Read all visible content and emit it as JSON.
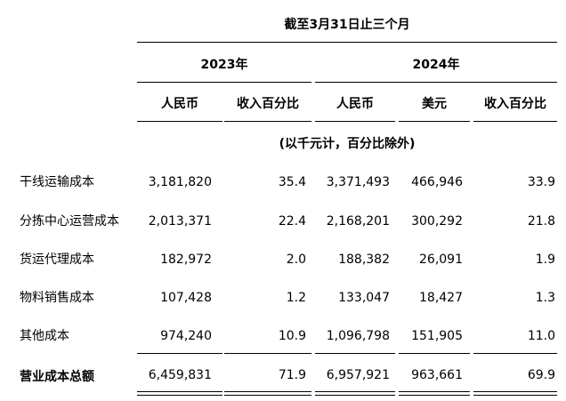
{
  "header": {
    "period": "截至3月31日止三个月",
    "year_2023": "2023年",
    "year_2024": "2024年",
    "col_rmb_2023": "人民币",
    "col_pct_2023": "收入百分比",
    "col_rmb_2024": "人民币",
    "col_usd_2024": "美元",
    "col_pct_2024": "收入百分比",
    "unit_note": "(以千元计，百分比除外)"
  },
  "rows": [
    {
      "label": "干线运输成本",
      "rmb_2023": "3,181,820",
      "pct_2023": "35.4",
      "rmb_2024": "3,371,493",
      "usd_2024": "466,946",
      "pct_2024": "33.9"
    },
    {
      "label": "分拣中心运营成本",
      "rmb_2023": "2,013,371",
      "pct_2023": "22.4",
      "rmb_2024": "2,168,201",
      "usd_2024": "300,292",
      "pct_2024": "21.8"
    },
    {
      "label": "货运代理成本",
      "rmb_2023": "182,972",
      "pct_2023": "2.0",
      "rmb_2024": "188,382",
      "usd_2024": "26,091",
      "pct_2024": "1.9"
    },
    {
      "label": "物料销售成本",
      "rmb_2023": "107,428",
      "pct_2023": "1.2",
      "rmb_2024": "133,047",
      "usd_2024": "18,427",
      "pct_2024": "1.3"
    },
    {
      "label": "其他成本",
      "rmb_2023": "974,240",
      "pct_2023": "10.9",
      "rmb_2024": "1,096,798",
      "usd_2024": "151,905",
      "pct_2024": "11.0"
    }
  ],
  "total": {
    "label": "营业成本总额",
    "rmb_2023": "6,459,831",
    "pct_2023": "71.9",
    "rmb_2024": "6,957,921",
    "usd_2024": "963,661",
    "pct_2024": "69.9"
  }
}
